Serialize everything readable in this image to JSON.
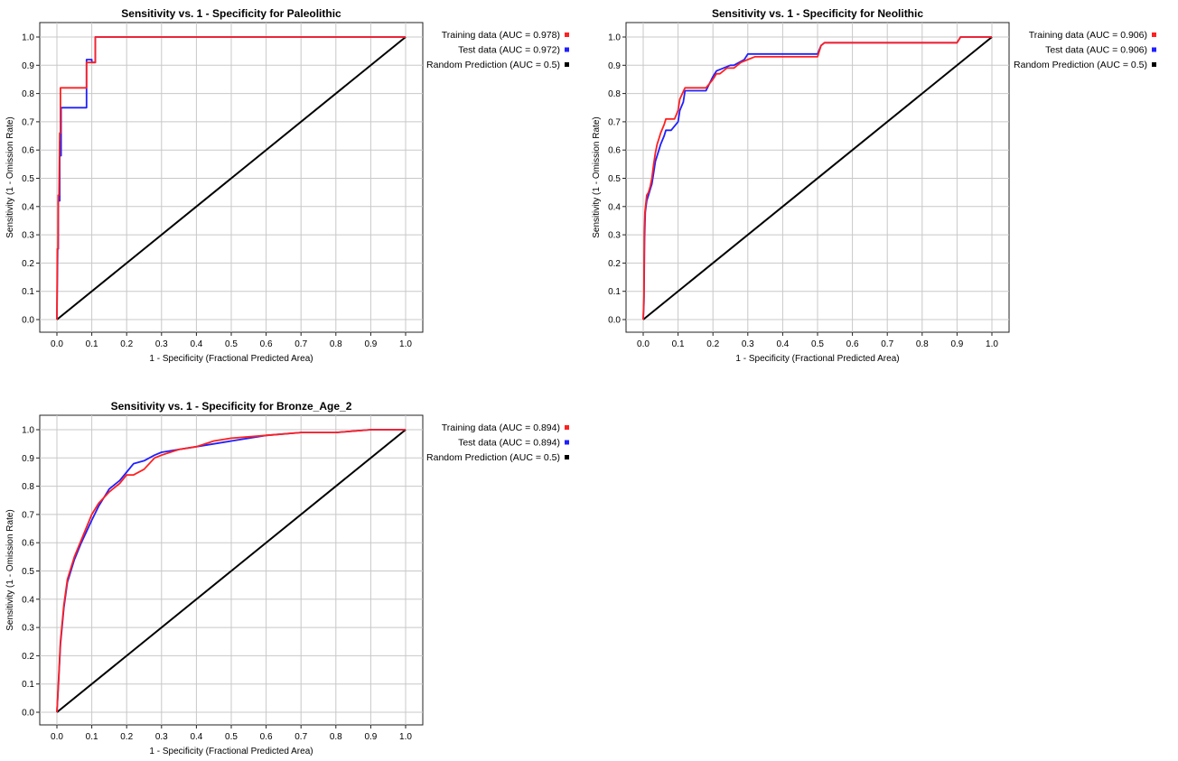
{
  "chart_data": [
    {
      "type": "line",
      "title": "Sensitivity vs. 1 - Specificity for Paleolithic",
      "xlabel": "1 - Specificity  (Fractional Predicted Area)",
      "ylabel": "Sensitivity  (1 - Omission Rate)",
      "xlim": [
        0,
        1
      ],
      "ylim": [
        0,
        1
      ],
      "xticks": [
        "0.0",
        "0.1",
        "0.2",
        "0.3",
        "0.4",
        "0.5",
        "0.6",
        "0.7",
        "0.8",
        "0.9",
        "1.0"
      ],
      "yticks": [
        "0.0",
        "0.1",
        "0.2",
        "0.3",
        "0.4",
        "0.5",
        "0.6",
        "0.7",
        "0.8",
        "0.9",
        "1.0"
      ],
      "grid": true,
      "legend_position": "right",
      "series": [
        {
          "name": "Training data (AUC = 0.978)",
          "color": "#ff2020",
          "x": [
            0,
            0.001,
            0.003,
            0.004,
            0.006,
            0.008,
            0.01,
            0.01,
            0.085,
            0.085,
            0.1,
            0.1,
            0.11,
            0.11,
            1.0
          ],
          "y": [
            0,
            0.25,
            0.25,
            0.44,
            0.44,
            0.66,
            0.66,
            0.82,
            0.82,
            0.91,
            0.91,
            0.91,
            0.91,
            1.0,
            1.0
          ]
        },
        {
          "name": "Test data (AUC = 0.972)",
          "color": "#2020ff",
          "x": [
            0,
            0.002,
            0.004,
            0.004,
            0.008,
            0.008,
            0.012,
            0.012,
            0.085,
            0.085,
            0.1,
            0.1,
            0.11,
            0.11,
            1.0
          ],
          "y": [
            0,
            0.25,
            0.25,
            0.42,
            0.42,
            0.63,
            0.58,
            0.75,
            0.75,
            0.92,
            0.92,
            0.91,
            0.91,
            1.0,
            1.0
          ]
        },
        {
          "name": "Random Prediction (AUC = 0.5)",
          "color": "#000000",
          "x": [
            0,
            1
          ],
          "y": [
            0,
            1
          ]
        }
      ]
    },
    {
      "type": "line",
      "title": "Sensitivity vs. 1 - Specificity for Neolithic",
      "xlabel": "1 - Specificity  (Fractional Predicted Area)",
      "ylabel": "Sensitivity  (1 - Omission Rate)",
      "xlim": [
        0,
        1
      ],
      "ylim": [
        0,
        1
      ],
      "xticks": [
        "0.0",
        "0.1",
        "0.2",
        "0.3",
        "0.4",
        "0.5",
        "0.6",
        "0.7",
        "0.8",
        "0.9",
        "1.0"
      ],
      "yticks": [
        "0.0",
        "0.1",
        "0.2",
        "0.3",
        "0.4",
        "0.5",
        "0.6",
        "0.7",
        "0.8",
        "0.9",
        "1.0"
      ],
      "grid": true,
      "legend_position": "right",
      "series": [
        {
          "name": "Training data (AUC = 0.906)",
          "color": "#ff2020",
          "x": [
            0,
            0.002,
            0.003,
            0.005,
            0.01,
            0.015,
            0.02,
            0.025,
            0.03,
            0.035,
            0.04,
            0.045,
            0.05,
            0.06,
            0.065,
            0.07,
            0.09,
            0.1,
            0.105,
            0.12,
            0.15,
            0.18,
            0.2,
            0.21,
            0.22,
            0.24,
            0.26,
            0.28,
            0.3,
            0.32,
            0.35,
            0.4,
            0.45,
            0.5,
            0.51,
            0.52,
            0.6,
            0.8,
            0.9,
            0.91,
            0.92,
            1.0
          ],
          "y": [
            0,
            0.08,
            0.3,
            0.38,
            0.44,
            0.45,
            0.47,
            0.5,
            0.55,
            0.59,
            0.62,
            0.64,
            0.66,
            0.69,
            0.71,
            0.71,
            0.71,
            0.74,
            0.78,
            0.82,
            0.82,
            0.82,
            0.85,
            0.87,
            0.87,
            0.89,
            0.89,
            0.91,
            0.92,
            0.93,
            0.93,
            0.93,
            0.93,
            0.93,
            0.97,
            0.98,
            0.98,
            0.98,
            0.98,
            1.0,
            1.0,
            1.0
          ]
        },
        {
          "name": "Test data (AUC = 0.906)",
          "color": "#2020ff",
          "x": [
            0,
            0.002,
            0.004,
            0.006,
            0.01,
            0.015,
            0.02,
            0.025,
            0.03,
            0.035,
            0.045,
            0.05,
            0.06,
            0.065,
            0.08,
            0.1,
            0.105,
            0.115,
            0.12,
            0.15,
            0.18,
            0.2,
            0.21,
            0.25,
            0.26,
            0.29,
            0.3,
            0.35,
            0.4,
            0.45,
            0.5,
            0.51,
            0.52,
            0.6,
            0.8,
            0.9,
            0.91,
            0.92,
            1.0
          ],
          "y": [
            0,
            0.06,
            0.29,
            0.38,
            0.42,
            0.44,
            0.46,
            0.48,
            0.52,
            0.56,
            0.6,
            0.62,
            0.65,
            0.67,
            0.67,
            0.7,
            0.74,
            0.77,
            0.81,
            0.81,
            0.81,
            0.86,
            0.88,
            0.9,
            0.9,
            0.92,
            0.94,
            0.94,
            0.94,
            0.94,
            0.94,
            0.97,
            0.98,
            0.98,
            0.98,
            0.98,
            1.0,
            1.0,
            1.0
          ]
        },
        {
          "name": "Random Prediction (AUC = 0.5)",
          "color": "#000000",
          "x": [
            0,
            1
          ],
          "y": [
            0,
            1
          ]
        }
      ]
    },
    {
      "type": "line",
      "title": "Sensitivity vs. 1 - Specificity for Bronze_Age_2",
      "xlabel": "1 - Specificity  (Fractional Predicted Area)",
      "ylabel": "Sensitivity  (1 - Omission Rate)",
      "xlim": [
        0,
        1
      ],
      "ylim": [
        0,
        1
      ],
      "xticks": [
        "0.0",
        "0.1",
        "0.2",
        "0.3",
        "0.4",
        "0.5",
        "0.6",
        "0.7",
        "0.8",
        "0.9",
        "1.0"
      ],
      "yticks": [
        "0.0",
        "0.1",
        "0.2",
        "0.3",
        "0.4",
        "0.5",
        "0.6",
        "0.7",
        "0.8",
        "0.9",
        "1.0"
      ],
      "grid": true,
      "legend_position": "right",
      "series": [
        {
          "name": "Training data (AUC = 0.894)",
          "color": "#ff2020",
          "x": [
            0,
            0.005,
            0.01,
            0.02,
            0.03,
            0.05,
            0.07,
            0.1,
            0.12,
            0.15,
            0.18,
            0.2,
            0.22,
            0.25,
            0.28,
            0.3,
            0.35,
            0.4,
            0.45,
            0.5,
            0.6,
            0.7,
            0.8,
            0.9,
            1.0
          ],
          "y": [
            0,
            0.12,
            0.25,
            0.38,
            0.47,
            0.55,
            0.61,
            0.7,
            0.74,
            0.78,
            0.81,
            0.84,
            0.84,
            0.86,
            0.9,
            0.91,
            0.93,
            0.94,
            0.96,
            0.97,
            0.98,
            0.99,
            0.99,
            1.0,
            1.0
          ]
        },
        {
          "name": "Test data (AUC = 0.894)",
          "color": "#2020ff",
          "x": [
            0,
            0.005,
            0.01,
            0.02,
            0.03,
            0.05,
            0.07,
            0.1,
            0.12,
            0.15,
            0.18,
            0.2,
            0.22,
            0.25,
            0.28,
            0.3,
            0.35,
            0.4,
            0.45,
            0.5,
            0.6,
            0.7,
            0.8,
            0.9,
            1.0
          ],
          "y": [
            0,
            0.11,
            0.24,
            0.37,
            0.46,
            0.54,
            0.6,
            0.68,
            0.73,
            0.79,
            0.82,
            0.85,
            0.88,
            0.89,
            0.91,
            0.92,
            0.93,
            0.94,
            0.95,
            0.96,
            0.98,
            0.99,
            0.99,
            1.0,
            1.0
          ]
        },
        {
          "name": "Random Prediction (AUC = 0.5)",
          "color": "#000000",
          "x": [
            0,
            1
          ],
          "y": [
            0,
            1
          ]
        }
      ]
    }
  ]
}
